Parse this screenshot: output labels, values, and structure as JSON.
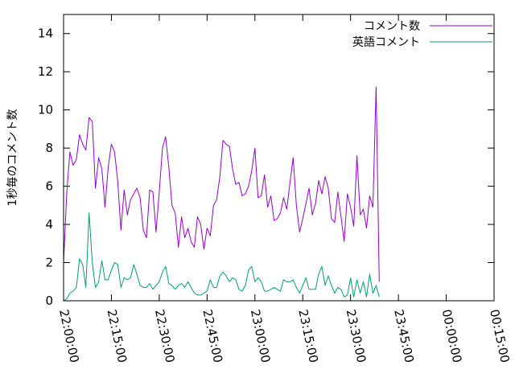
{
  "chart_data": {
    "type": "line",
    "ylabel": "1秒毎のコメント数",
    "xlabel": "",
    "ylim": [
      0,
      15
    ],
    "xlim": [
      "22:00:00",
      "00:15:00"
    ],
    "x_ticks": [
      "22:00:00",
      "22:15:00",
      "22:30:00",
      "22:45:00",
      "23:00:00",
      "23:15:00",
      "23:30:00",
      "23:45:00",
      "00:00:00",
      "00:15:00"
    ],
    "y_ticks": [
      "0",
      "2",
      "4",
      "6",
      "8",
      "10",
      "12",
      "14"
    ],
    "legend_position": "top-right",
    "series": [
      {
        "name": "コメント数",
        "color": "#9400d3",
        "points": [
          [
            "22:00:00",
            2.0
          ],
          [
            "22:01:00",
            5.7
          ],
          [
            "22:02:00",
            7.8
          ],
          [
            "22:03:00",
            7.1
          ],
          [
            "22:04:00",
            7.4
          ],
          [
            "22:05:00",
            8.7
          ],
          [
            "22:06:00",
            8.2
          ],
          [
            "22:07:00",
            7.9
          ],
          [
            "22:08:00",
            9.6
          ],
          [
            "22:09:00",
            9.4
          ],
          [
            "22:10:00",
            5.9
          ],
          [
            "22:11:00",
            7.5
          ],
          [
            "22:12:00",
            6.9
          ],
          [
            "22:13:00",
            4.9
          ],
          [
            "22:14:00",
            7.0
          ],
          [
            "22:15:00",
            8.2
          ],
          [
            "22:16:00",
            7.8
          ],
          [
            "22:17:00",
            6.2
          ],
          [
            "22:18:00",
            3.7
          ],
          [
            "22:19:00",
            5.8
          ],
          [
            "22:20:00",
            4.5
          ],
          [
            "22:21:00",
            5.3
          ],
          [
            "22:22:00",
            5.6
          ],
          [
            "22:23:00",
            5.9
          ],
          [
            "22:24:00",
            5.4
          ],
          [
            "22:25:00",
            3.7
          ],
          [
            "22:26:00",
            3.3
          ],
          [
            "22:27:00",
            5.8
          ],
          [
            "22:28:00",
            5.7
          ],
          [
            "22:29:00",
            3.6
          ],
          [
            "22:30:00",
            5.7
          ],
          [
            "22:31:00",
            8.0
          ],
          [
            "22:32:00",
            8.6
          ],
          [
            "22:33:00",
            7.0
          ],
          [
            "22:34:00",
            5.0
          ],
          [
            "22:35:00",
            4.6
          ],
          [
            "22:36:00",
            2.8
          ],
          [
            "22:37:00",
            4.4
          ],
          [
            "22:38:00",
            3.3
          ],
          [
            "22:39:00",
            3.8
          ],
          [
            "22:40:00",
            3.1
          ],
          [
            "22:41:00",
            2.8
          ],
          [
            "22:42:00",
            4.4
          ],
          [
            "22:43:00",
            4.0
          ],
          [
            "22:44:00",
            2.7
          ],
          [
            "22:45:00",
            3.8
          ],
          [
            "22:46:00",
            3.4
          ],
          [
            "22:47:00",
            5.0
          ],
          [
            "22:48:00",
            5.3
          ],
          [
            "22:49:00",
            6.5
          ],
          [
            "22:50:00",
            8.4
          ],
          [
            "22:51:00",
            8.2
          ],
          [
            "22:52:00",
            8.1
          ],
          [
            "22:53:00",
            6.9
          ],
          [
            "22:54:00",
            6.1
          ],
          [
            "22:55:00",
            6.2
          ],
          [
            "22:56:00",
            5.5
          ],
          [
            "22:57:00",
            5.6
          ],
          [
            "22:58:00",
            6.0
          ],
          [
            "22:59:00",
            6.8
          ],
          [
            "23:00:00",
            8.0
          ],
          [
            "23:01:00",
            5.4
          ],
          [
            "23:02:00",
            5.5
          ],
          [
            "23:03:00",
            6.6
          ],
          [
            "23:04:00",
            4.9
          ],
          [
            "23:05:00",
            5.5
          ],
          [
            "23:06:00",
            4.2
          ],
          [
            "23:07:00",
            4.3
          ],
          [
            "23:08:00",
            4.6
          ],
          [
            "23:09:00",
            5.4
          ],
          [
            "23:10:00",
            4.8
          ],
          [
            "23:11:00",
            6.2
          ],
          [
            "23:12:00",
            7.5
          ],
          [
            "23:13:00",
            5.0
          ],
          [
            "23:14:00",
            3.6
          ],
          [
            "23:15:00",
            4.3
          ],
          [
            "23:16:00",
            5.1
          ],
          [
            "23:17:00",
            5.9
          ],
          [
            "23:18:00",
            4.5
          ],
          [
            "23:19:00",
            5.1
          ],
          [
            "23:20:00",
            6.3
          ],
          [
            "23:21:00",
            5.6
          ],
          [
            "23:22:00",
            6.5
          ],
          [
            "23:23:00",
            5.9
          ],
          [
            "23:24:00",
            4.3
          ],
          [
            "23:25:00",
            4.1
          ],
          [
            "23:26:00",
            5.7
          ],
          [
            "23:27:00",
            4.4
          ],
          [
            "23:28:00",
            3.1
          ],
          [
            "23:29:00",
            5.6
          ],
          [
            "23:30:00",
            4.9
          ],
          [
            "23:31:00",
            3.9
          ],
          [
            "23:32:00",
            7.6
          ],
          [
            "23:33:00",
            4.5
          ],
          [
            "23:34:00",
            4.8
          ],
          [
            "23:35:00",
            3.8
          ],
          [
            "23:36:00",
            5.5
          ],
          [
            "23:37:00",
            4.9
          ],
          [
            "23:38:00",
            11.2
          ],
          [
            "23:39:00",
            1.0
          ]
        ]
      },
      {
        "name": "英語コメント",
        "color": "#009e73",
        "points": [
          [
            "22:00:00",
            0.0
          ],
          [
            "22:01:00",
            0.1
          ],
          [
            "22:02:00",
            0.4
          ],
          [
            "22:03:00",
            0.5
          ],
          [
            "22:04:00",
            0.7
          ],
          [
            "22:05:00",
            2.2
          ],
          [
            "22:06:00",
            1.9
          ],
          [
            "22:07:00",
            0.7
          ],
          [
            "22:08:00",
            4.6
          ],
          [
            "22:09:00",
            2.0
          ],
          [
            "22:10:00",
            0.7
          ],
          [
            "22:11:00",
            1.0
          ],
          [
            "22:12:00",
            2.1
          ],
          [
            "22:13:00",
            1.1
          ],
          [
            "22:14:00",
            1.1
          ],
          [
            "22:15:00",
            1.6
          ],
          [
            "22:16:00",
            2.0
          ],
          [
            "22:17:00",
            1.9
          ],
          [
            "22:18:00",
            0.7
          ],
          [
            "22:19:00",
            1.2
          ],
          [
            "22:20:00",
            1.1
          ],
          [
            "22:21:00",
            1.2
          ],
          [
            "22:22:00",
            1.9
          ],
          [
            "22:23:00",
            1.4
          ],
          [
            "22:24:00",
            0.8
          ],
          [
            "22:25:00",
            0.7
          ],
          [
            "22:26:00",
            0.7
          ],
          [
            "22:27:00",
            0.9
          ],
          [
            "22:28:00",
            0.6
          ],
          [
            "22:29:00",
            0.8
          ],
          [
            "22:30:00",
            1.0
          ],
          [
            "22:31:00",
            1.5
          ],
          [
            "22:32:00",
            1.8
          ],
          [
            "22:33:00",
            0.9
          ],
          [
            "22:34:00",
            0.8
          ],
          [
            "22:35:00",
            0.6
          ],
          [
            "22:36:00",
            0.8
          ],
          [
            "22:37:00",
            0.9
          ],
          [
            "22:38:00",
            0.7
          ],
          [
            "22:39:00",
            1.0
          ],
          [
            "22:40:00",
            0.7
          ],
          [
            "22:41:00",
            0.4
          ],
          [
            "22:42:00",
            0.3
          ],
          [
            "22:43:00",
            0.3
          ],
          [
            "22:44:00",
            0.4
          ],
          [
            "22:45:00",
            0.5
          ],
          [
            "22:46:00",
            1.1
          ],
          [
            "22:47:00",
            0.7
          ],
          [
            "22:48:00",
            0.7
          ],
          [
            "22:49:00",
            1.3
          ],
          [
            "22:50:00",
            1.5
          ],
          [
            "22:51:00",
            1.3
          ],
          [
            "22:52:00",
            1.0
          ],
          [
            "22:53:00",
            1.2
          ],
          [
            "22:54:00",
            1.1
          ],
          [
            "22:55:00",
            0.6
          ],
          [
            "22:56:00",
            0.5
          ],
          [
            "22:57:00",
            0.8
          ],
          [
            "22:58:00",
            1.6
          ],
          [
            "22:59:00",
            1.8
          ],
          [
            "23:00:00",
            1.0
          ],
          [
            "23:01:00",
            1.2
          ],
          [
            "23:02:00",
            1.0
          ],
          [
            "23:03:00",
            0.5
          ],
          [
            "23:04:00",
            0.5
          ],
          [
            "23:05:00",
            0.6
          ],
          [
            "23:06:00",
            0.7
          ],
          [
            "23:07:00",
            0.6
          ],
          [
            "23:08:00",
            0.5
          ],
          [
            "23:09:00",
            1.1
          ],
          [
            "23:10:00",
            1.0
          ],
          [
            "23:11:00",
            1.0
          ],
          [
            "23:12:00",
            1.1
          ],
          [
            "23:13:00",
            0.7
          ],
          [
            "23:14:00",
            0.4
          ],
          [
            "23:15:00",
            0.8
          ],
          [
            "23:16:00",
            1.2
          ],
          [
            "23:17:00",
            0.6
          ],
          [
            "23:18:00",
            0.6
          ],
          [
            "23:19:00",
            0.6
          ],
          [
            "23:20:00",
            1.4
          ],
          [
            "23:21:00",
            1.8
          ],
          [
            "23:22:00",
            0.8
          ],
          [
            "23:23:00",
            1.3
          ],
          [
            "23:24:00",
            0.8
          ],
          [
            "23:25:00",
            0.4
          ],
          [
            "23:26:00",
            0.7
          ],
          [
            "23:27:00",
            0.6
          ],
          [
            "23:28:00",
            0.2
          ],
          [
            "23:29:00",
            0.3
          ],
          [
            "23:30:00",
            1.2
          ],
          [
            "23:31:00",
            0.2
          ],
          [
            "23:32:00",
            1.1
          ],
          [
            "23:33:00",
            0.4
          ],
          [
            "23:34:00",
            1.0
          ],
          [
            "23:35:00",
            0.2
          ],
          [
            "23:36:00",
            1.4
          ],
          [
            "23:37:00",
            0.4
          ],
          [
            "23:38:00",
            0.8
          ],
          [
            "23:39:00",
            0.2
          ]
        ]
      }
    ]
  }
}
